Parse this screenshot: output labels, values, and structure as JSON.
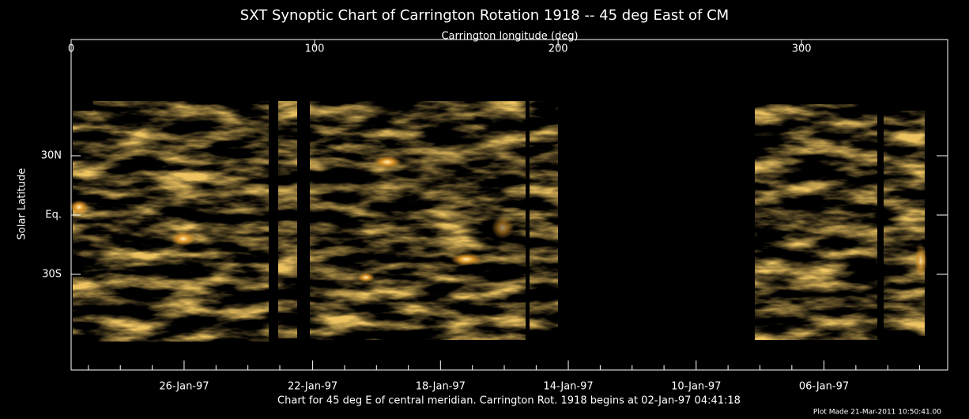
{
  "chart_data": {
    "type": "synoptic-map",
    "title": "SXT Synoptic Chart of Carrington Rotation 1918 -- 45 deg East of CM",
    "xlabel": "Carrington longitude (deg)",
    "ylabel": "Solar Latitude",
    "xlim": [
      0,
      360
    ],
    "xticks": [
      0,
      100,
      200,
      300
    ],
    "ylim": [
      -78.4,
      88.8
    ],
    "yticks": [
      {
        "value": 30,
        "label": "30N"
      },
      {
        "value": 0,
        "label": "Eq."
      },
      {
        "value": -30,
        "label": "30S"
      }
    ],
    "x2ticks": [
      {
        "value": 46.4,
        "label": "26-Jan-97"
      },
      {
        "value": 99.2,
        "label": "22-Jan-97"
      },
      {
        "value": 151.7,
        "label": "18-Jan-97"
      },
      {
        "value": 204.2,
        "label": "14-Jan-97"
      },
      {
        "value": 256.7,
        "label": "10-Jan-97"
      },
      {
        "value": 309.2,
        "label": "06-Jan-97"
      }
    ],
    "x2minorticks": [
      7.1,
      20.2,
      33.3,
      59.5,
      72.6,
      85.7,
      112.3,
      125.4,
      138.5,
      164.8,
      177.9,
      191.0,
      217.3,
      230.4,
      243.5,
      269.8,
      282.9,
      296.0,
      322.3,
      335.4,
      348.5
    ],
    "caption": "Chart for 45 deg E of central meridian.  Carrington Rot. 1918 begins at 02-Jan-97 04:41:18",
    "footnote": "Plot Made 21-Mar-2011 10:50:41.00"
  }
}
